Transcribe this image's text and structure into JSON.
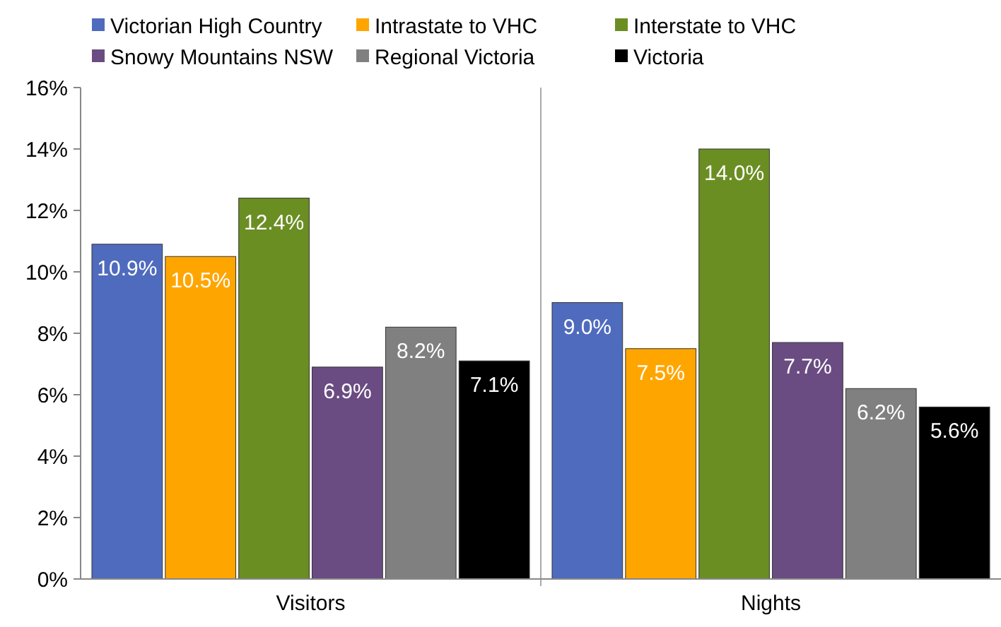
{
  "chart_data": {
    "type": "bar",
    "categories": [
      "Visitors",
      "Nights"
    ],
    "series": [
      {
        "name": "Victorian High Country",
        "color": "#4f6bbd",
        "values": [
          10.9,
          9.0
        ],
        "value_labels": [
          "10.9%",
          "9.0%"
        ]
      },
      {
        "name": "Intrastate to VHC",
        "color": "#ffa500",
        "values": [
          10.5,
          7.5
        ],
        "value_labels": [
          "10.5%",
          "7.5%"
        ]
      },
      {
        "name": "Interstate to VHC",
        "color": "#6b8e23",
        "values": [
          12.4,
          14.0
        ],
        "value_labels": [
          "12.4%",
          "14.0%"
        ]
      },
      {
        "name": "Snowy Mountains NSW",
        "color": "#6a4c82",
        "values": [
          6.9,
          7.7
        ],
        "value_labels": [
          "6.9%",
          "7.7%"
        ]
      },
      {
        "name": "Regional Victoria",
        "color": "#808080",
        "values": [
          8.2,
          6.2
        ],
        "value_labels": [
          "8.2%",
          "6.2%"
        ]
      },
      {
        "name": "Victoria",
        "color": "#000000",
        "values": [
          7.1,
          5.6
        ],
        "value_labels": [
          "7.1%",
          "5.6%"
        ]
      }
    ],
    "ylim": [
      0,
      16
    ],
    "yticks": [
      {
        "value": 0,
        "label": "0%"
      },
      {
        "value": 2,
        "label": "2%"
      },
      {
        "value": 4,
        "label": "4%"
      },
      {
        "value": 6,
        "label": "6%"
      },
      {
        "value": 8,
        "label": "8%"
      },
      {
        "value": 10,
        "label": "10%"
      },
      {
        "value": 12,
        "label": "12%"
      },
      {
        "value": 14,
        "label": "14%"
      },
      {
        "value": 16,
        "label": "16%"
      }
    ],
    "legend": "top"
  }
}
